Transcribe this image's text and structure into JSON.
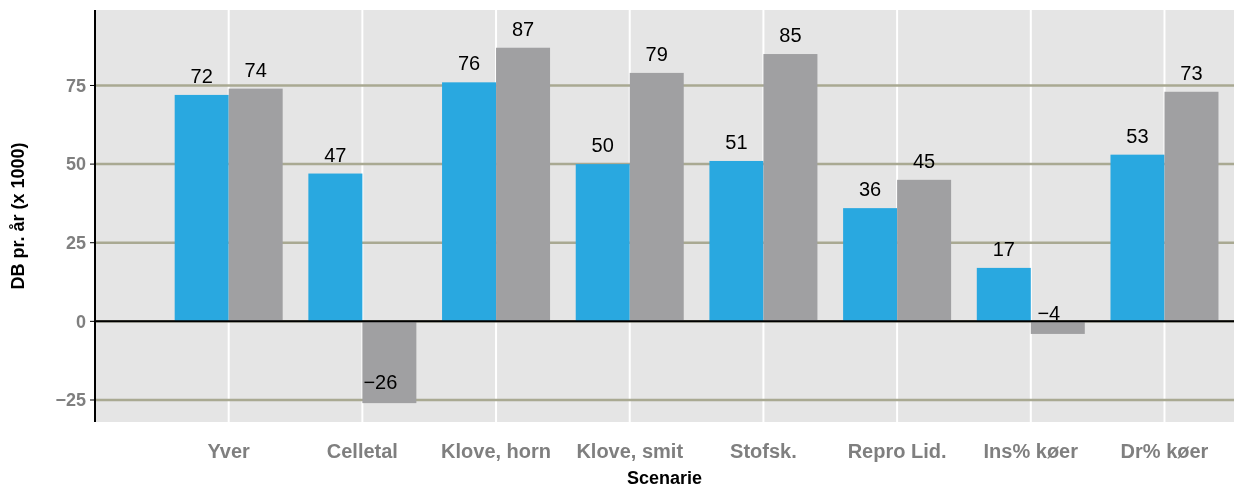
{
  "chart_data": {
    "type": "bar",
    "xlabel": "Scenarie",
    "ylabel": "DB pr. år (x 1000)",
    "categories": [
      "Yver",
      "Celletal",
      "Klove, horn",
      "Klove, smit",
      "Stofsk.",
      "Repro Lid.",
      "Ins% køer",
      "Dr% køer"
    ],
    "series": [
      {
        "color": "#29a8e0",
        "values": [
          72,
          47,
          76,
          50,
          51,
          36,
          17,
          53
        ],
        "value_labels": [
          "72",
          "47",
          "76",
          "50",
          "51",
          "36",
          "17",
          "53"
        ]
      },
      {
        "color": "#a0a0a2",
        "values": [
          74,
          -26,
          87,
          79,
          85,
          45,
          -4,
          73
        ],
        "value_labels": [
          "74",
          "−26",
          "87",
          "79",
          "85",
          "45",
          "−4",
          "73"
        ]
      }
    ],
    "ylim": [
      -32,
      99
    ],
    "yticks": [
      {
        "value": -25,
        "label": "−25"
      },
      0,
      25,
      50,
      75
    ],
    "grid": true
  }
}
